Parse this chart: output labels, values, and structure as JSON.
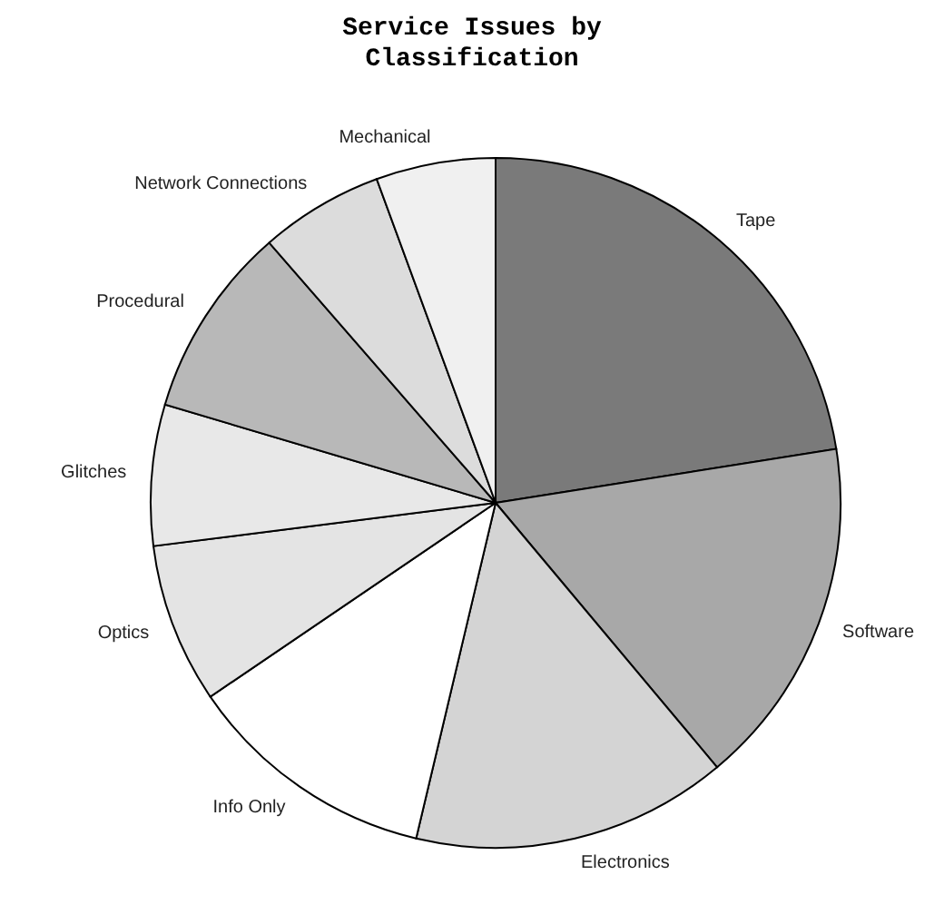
{
  "chart_data": {
    "type": "pie",
    "title": "Service Issues by Classification",
    "categories": [
      "Tape",
      "Software",
      "Electronics",
      "Info Only",
      "Optics",
      "Glitches",
      "Procedural",
      "Network Connections",
      "Mechanical"
    ],
    "values": [
      22.5,
      16.4,
      14.8,
      11.8,
      7.5,
      6.6,
      9,
      5.8,
      5.6
    ],
    "colors": [
      "#7a7a7a",
      "#a8a8a8",
      "#d4d4d4",
      "#ffffff",
      "#e4e4e4",
      "#e8e8e8",
      "#b8b8b8",
      "#dcdcdc",
      "#f0f0f0"
    ]
  }
}
